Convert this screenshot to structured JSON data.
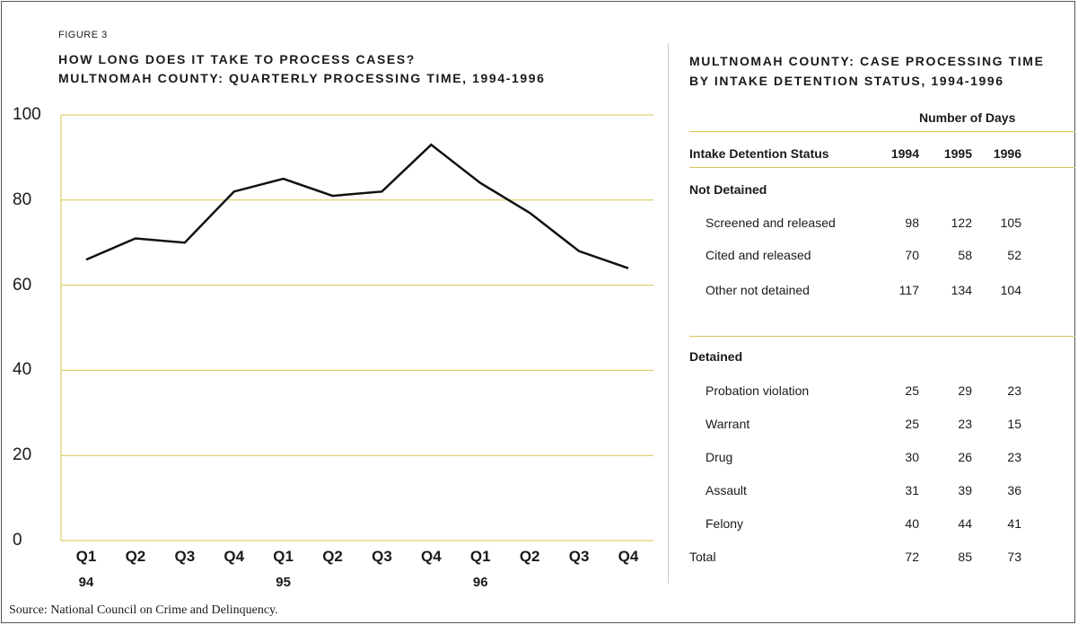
{
  "figure_label": "FIGURE 3",
  "left_title": {
    "line1": "HOW LONG DOES IT TAKE TO PROCESS CASES?",
    "line2": "MULTNOMAH COUNTY: QUARTERLY PROCESSING TIME, 1994-1996"
  },
  "right_title": {
    "line1": "MULTNOMAH COUNTY: CASE PROCESSING TIME",
    "line2": "BY INTAKE DETENTION STATUS, 1994-1996"
  },
  "chart_data": {
    "type": "line",
    "categories": [
      "Q1",
      "Q2",
      "Q3",
      "Q4",
      "Q1",
      "Q2",
      "Q3",
      "Q4",
      "Q1",
      "Q2",
      "Q3",
      "Q4"
    ],
    "year_labels": [
      "94",
      "",
      "",
      "",
      "95",
      "",
      "",
      "",
      "96",
      "",
      "",
      ""
    ],
    "series": [
      {
        "values": [
          66,
          71,
          70,
          82,
          85,
          81,
          82,
          93,
          84,
          77,
          68,
          64
        ]
      }
    ],
    "yticks": [
      "0",
      "20",
      "40",
      "60",
      "80",
      "100"
    ],
    "ylim": [
      0,
      100
    ],
    "grid": true,
    "colors": {
      "line": "#111111",
      "grid": "#d9c64a"
    }
  },
  "table": {
    "super_header": "Number of Days",
    "headers": [
      "Intake Detention Status",
      "1994",
      "1995",
      "1996"
    ],
    "groups": [
      {
        "label": "Not Detained",
        "rows": [
          {
            "label": "Screened and released",
            "values": [
              "98",
              "122",
              "105"
            ]
          },
          {
            "label": "Cited and released",
            "values": [
              "70",
              "58",
              "52"
            ]
          },
          {
            "label": "Other not detained",
            "values": [
              "117",
              "134",
              "104"
            ]
          }
        ]
      },
      {
        "label": "Detained",
        "rows": [
          {
            "label": "Probation violation",
            "values": [
              "25",
              "29",
              "23"
            ]
          },
          {
            "label": "Warrant",
            "values": [
              "25",
              "23",
              "15"
            ]
          },
          {
            "label": "Drug",
            "values": [
              "30",
              "26",
              "23"
            ]
          },
          {
            "label": "Assault",
            "values": [
              "31",
              "39",
              "36"
            ]
          },
          {
            "label": "Felony",
            "values": [
              "40",
              "44",
              "41"
            ]
          }
        ]
      }
    ],
    "total": {
      "label": "Total",
      "values": [
        "72",
        "85",
        "73"
      ]
    }
  },
  "source": "Source: National Council on Crime and Delinquency."
}
